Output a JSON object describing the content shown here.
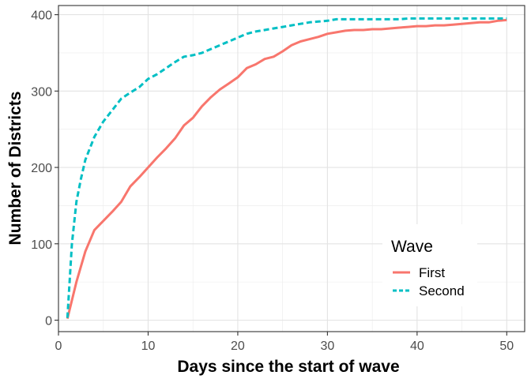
{
  "chart_data": {
    "type": "line",
    "xlabel": "Days since the start of wave",
    "ylabel": "Number of Districts",
    "xlim": [
      0,
      52
    ],
    "ylim": [
      -15,
      412
    ],
    "x_ticks": [
      0,
      10,
      20,
      30,
      40,
      50
    ],
    "y_ticks": [
      0,
      100,
      200,
      300,
      400
    ],
    "x_tick_labels": [
      "0",
      "10",
      "20",
      "30",
      "40",
      "50"
    ],
    "y_tick_labels": [
      "0",
      "100",
      "200",
      "300",
      "400"
    ],
    "grid": true,
    "legend": {
      "title": "Wave",
      "position": "bottom-right"
    },
    "series": [
      {
        "name": "First",
        "color": "#F8766D",
        "dash": "solid",
        "x": [
          1,
          2,
          3,
          4,
          5,
          6,
          7,
          8,
          9,
          10,
          11,
          12,
          13,
          14,
          15,
          16,
          17,
          18,
          19,
          20,
          21,
          22,
          23,
          24,
          25,
          26,
          27,
          28,
          29,
          30,
          31,
          32,
          33,
          34,
          35,
          36,
          37,
          38,
          39,
          40,
          41,
          42,
          43,
          44,
          45,
          46,
          47,
          48,
          49,
          50
        ],
        "y": [
          2,
          50,
          90,
          118,
          130,
          142,
          155,
          175,
          187,
          200,
          213,
          225,
          238,
          255,
          265,
          280,
          292,
          302,
          310,
          318,
          330,
          335,
          342,
          345,
          352,
          360,
          365,
          368,
          371,
          375,
          377,
          379,
          380,
          380,
          381,
          381,
          382,
          383,
          384,
          385,
          385,
          386,
          386,
          387,
          388,
          389,
          390,
          390,
          392,
          393
        ]
      },
      {
        "name": "Second",
        "color": "#00BFC4",
        "dash": "dashed",
        "x": [
          1,
          1.5,
          2,
          2.5,
          3,
          4,
          5,
          6,
          7,
          8,
          9,
          10,
          11,
          12,
          13,
          14,
          15,
          16,
          17,
          18,
          19,
          20,
          21,
          22,
          23,
          24,
          25,
          26,
          27,
          28,
          29,
          30,
          31,
          32,
          33,
          34,
          35,
          36,
          37,
          38,
          39,
          40,
          41,
          42,
          43,
          44,
          45,
          46,
          47,
          48,
          49,
          50
        ],
        "y": [
          3,
          100,
          155,
          185,
          210,
          240,
          260,
          275,
          290,
          298,
          305,
          316,
          322,
          330,
          338,
          345,
          347,
          350,
          355,
          360,
          365,
          370,
          375,
          378,
          380,
          382,
          384,
          386,
          388,
          390,
          391,
          392,
          394,
          394,
          394,
          394,
          394,
          394,
          394,
          394,
          395,
          395,
          395,
          395,
          395,
          395,
          395,
          395,
          395,
          395,
          395,
          395
        ]
      }
    ]
  }
}
